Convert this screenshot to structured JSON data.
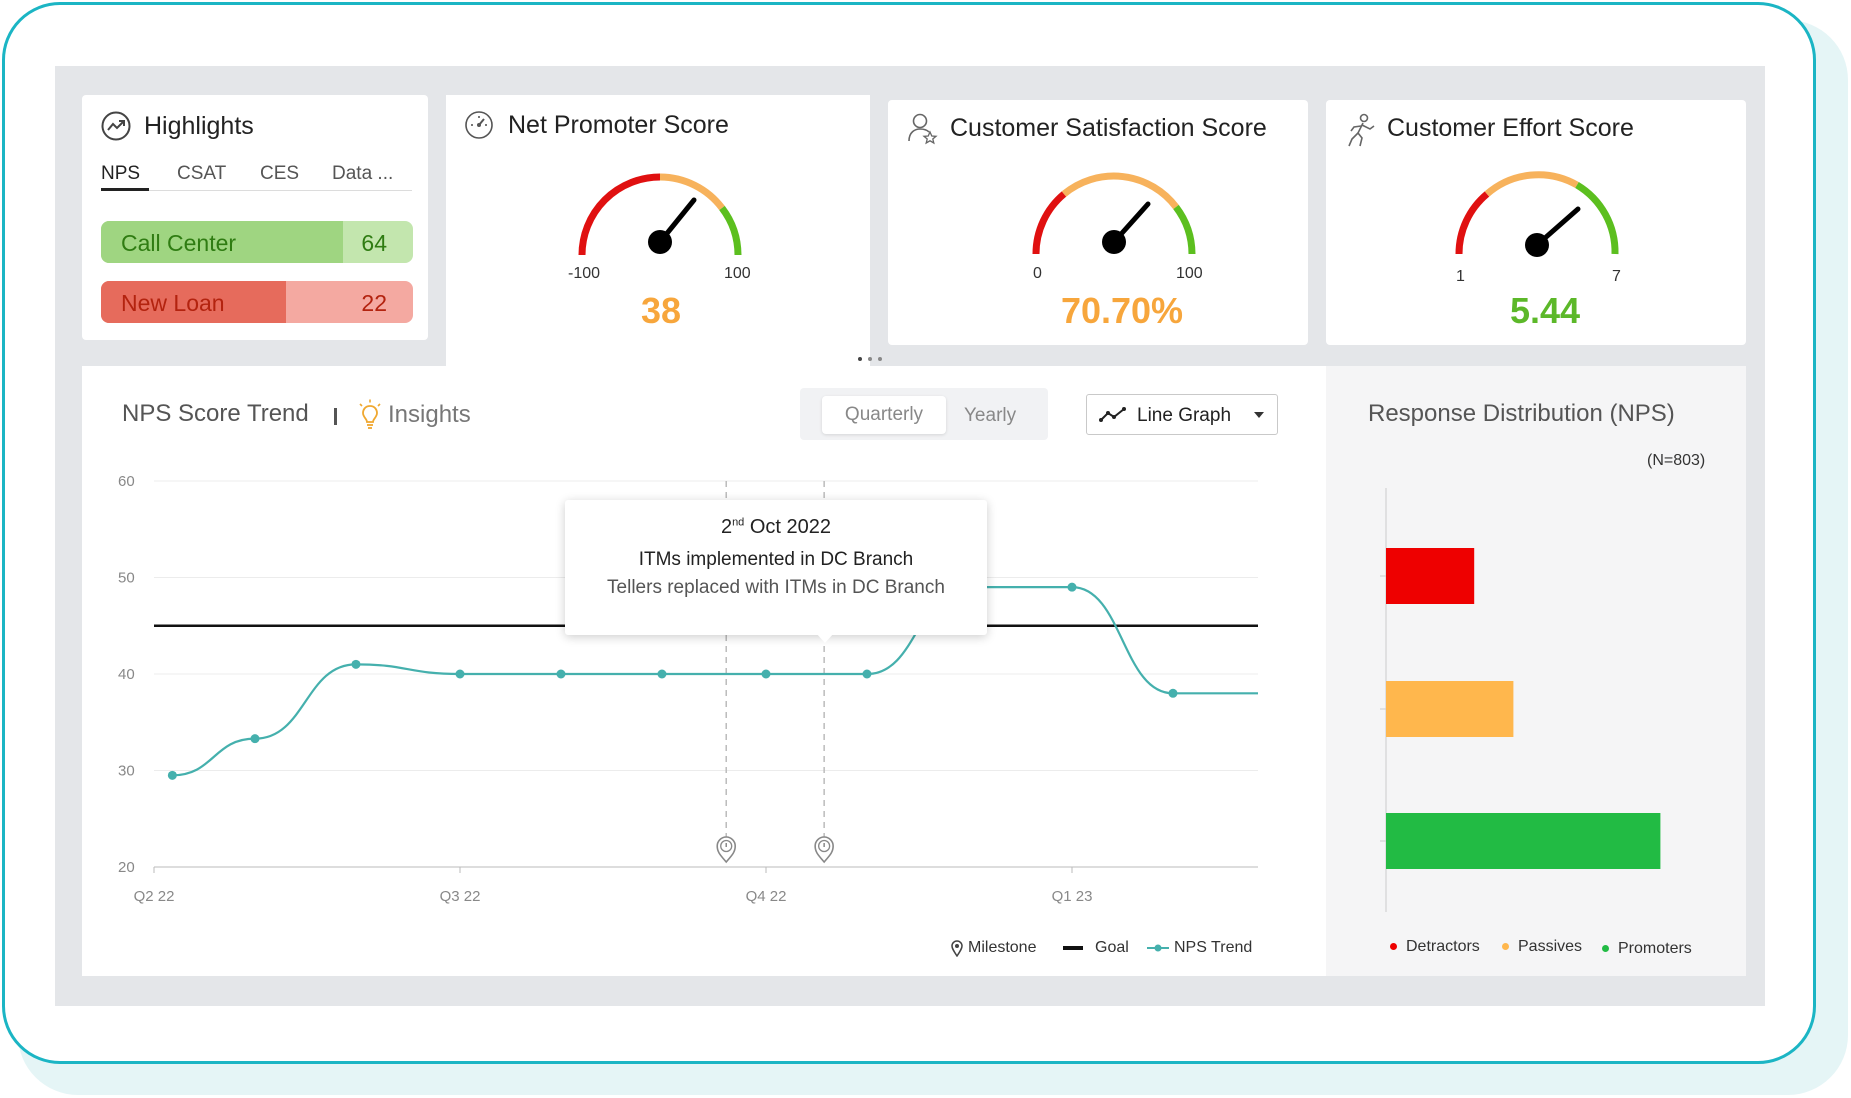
{
  "highlights": {
    "title": "Highlights",
    "tabs": [
      "NPS",
      "CSAT",
      "CES",
      "Data ..."
    ],
    "active_tab": "NPS",
    "items": [
      {
        "label": "Call Center",
        "value": "64",
        "color": "#9fd581",
        "light": "#c3e6ae",
        "text": "#2f7c12"
      },
      {
        "label": "New Loan",
        "value": "22",
        "color": "#e66b5c",
        "light": "#f4a9a1",
        "text": "#b3230f"
      }
    ]
  },
  "nps": {
    "title": "Net Promoter Score",
    "min": "-100",
    "max": "100",
    "value": "38",
    "value_color": "#f7a63c"
  },
  "csat": {
    "title": "Customer Satisfaction Score",
    "min": "0",
    "max": "100",
    "value": "70.70%",
    "value_color": "#f7a63c"
  },
  "ces": {
    "title": "Customer Effort Score",
    "min": "1",
    "max": "7",
    "value": "5.44",
    "value_color": "#5cb829"
  },
  "trend": {
    "title": "NPS Score Trend",
    "insights": "Insights",
    "period_options": [
      "Quarterly",
      "Yearly"
    ],
    "selected_period": "Quarterly",
    "graph_type": "Line Graph",
    "tooltip": {
      "date_day": "2",
      "date_suffix": "nd",
      "date_rest": "Oct 2022",
      "line1": "ITMs implemented in DC Branch",
      "line2": "Tellers replaced with ITMs in DC Branch"
    },
    "legend": {
      "milestone": "Milestone",
      "goal": "Goal",
      "trend": "NPS Trend"
    }
  },
  "chart_data": [
    {
      "type": "line",
      "title": "NPS Score Trend",
      "x_ticks": [
        "Q2 22",
        "Q3 22",
        "Q4 22",
        "Q1 23"
      ],
      "y_ticks": [
        20,
        30,
        40,
        50,
        60
      ],
      "ylim": [
        20,
        60
      ],
      "goal": 45,
      "series": [
        {
          "name": "NPS Trend",
          "x": [
            0.06,
            0.33,
            0.66,
            1.0,
            1.33,
            1.66,
            2.0,
            2.33,
            2.66,
            3.0,
            3.33
          ],
          "values": [
            29.5,
            33.3,
            41,
            40,
            40,
            40,
            40,
            40,
            49,
            49,
            38
          ]
        }
      ],
      "milestones_x": [
        1.87,
        2.19
      ],
      "line_end_value": 38
    },
    {
      "type": "bar",
      "title": "Response Distribution (NPS)",
      "n_label": "(N=803)",
      "categories": [
        "Detractors",
        "Passives",
        "Promoters"
      ],
      "values": [
        90,
        130,
        280
      ],
      "colors": [
        "#ee0000",
        "#ffb74d",
        "#22bb44"
      ]
    }
  ],
  "colors": {
    "accent": "#1bb5c4",
    "trend_line": "#45b0ad",
    "goal": "#111111"
  }
}
